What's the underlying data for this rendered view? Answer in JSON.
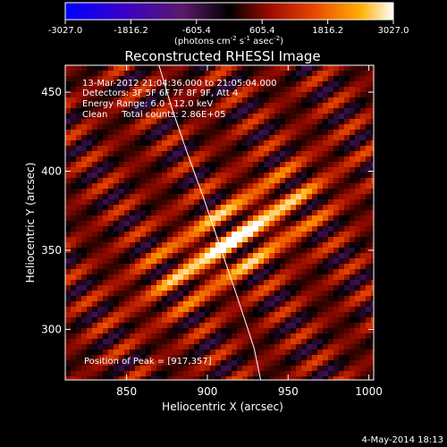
{
  "chart_data": {
    "type": "heatmap",
    "title": "Reconstructed RHESSI Image",
    "xlabel": "Heliocentric X (arcsec)",
    "ylabel": "Heliocentric Y (arcsec)",
    "xlim": [
      812,
      1003
    ],
    "ylim": [
      268,
      467
    ],
    "x_ticks": [
      850,
      900,
      950,
      1000
    ],
    "y_ticks": [
      300,
      350,
      400,
      450
    ],
    "colorbar": {
      "ticks": [
        "-3027.0",
        "-1816.2",
        "-605.4",
        "605.4",
        "1816.2",
        "3027.0"
      ],
      "range": [
        -3027.0,
        3027.0
      ],
      "unit_text": "(photons cm",
      "unit_sup1": "-2",
      "unit_mid1": " s",
      "unit_sup2": "-1",
      "unit_mid2": " asec",
      "unit_sup3": "-2",
      "unit_end": ")"
    },
    "peak": {
      "x": 917,
      "y": 357
    },
    "limb_line": [
      [
        870,
        467
      ],
      [
        878,
        440
      ],
      [
        887,
        413
      ],
      [
        897,
        385
      ],
      [
        907,
        355
      ],
      [
        918,
        322
      ],
      [
        929,
        288
      ],
      [
        933,
        268
      ]
    ],
    "annotations": {
      "time_range": "13-Mar-2012 21:04:36.000 to 21:05:04.000",
      "detectors": "Detectors: 3F 5F 6F 7F 8F 9F, Att 4",
      "energy": "Energy Range: 6.0 - 12.0 keV",
      "clean": "Clean     Total counts: 2.86E+05",
      "peak_label": "Position of Peak = [917,357]"
    }
  },
  "footer": {
    "date": "4-May-2014 18:13"
  }
}
